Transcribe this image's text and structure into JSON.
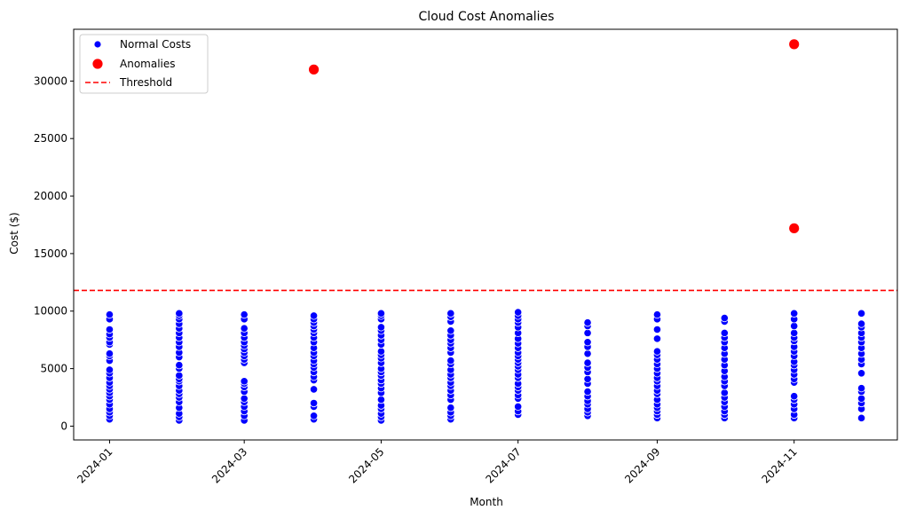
{
  "chart_data": {
    "type": "scatter",
    "title": "Cloud Cost Anomalies",
    "xlabel": "Month",
    "ylabel": "Cost ($)",
    "x_ticks": [
      "2024-01",
      "2024-03",
      "2024-05",
      "2024-07",
      "2024-09",
      "2024-11"
    ],
    "y_ticks": [
      0,
      5000,
      10000,
      15000,
      20000,
      25000,
      30000
    ],
    "xlim": [
      "2023-12-16",
      "2024-12-17"
    ],
    "ylim": [
      -1200,
      34500
    ],
    "grid": false,
    "legend_placement": "top-left",
    "threshold": {
      "name": "Threshold",
      "value": 11800,
      "color": "#ff0000",
      "style": "dashed"
    },
    "series": [
      {
        "name": "Normal Costs",
        "color": "#0000ff",
        "points": [
          {
            "x": "2024-01",
            "values": [
              600,
              900,
              1200,
              1500,
              1900,
              2300,
              2600,
              2900,
              3200,
              3500,
              3800,
              4200,
              4600,
              4900,
              5700,
              6100,
              6300,
              7100,
              7300,
              7700,
              8000,
              8400,
              9300,
              9700
            ]
          },
          {
            "x": "2024-02",
            "values": [
              500,
              800,
              1100,
              1600,
              2100,
              2500,
              2800,
              3100,
              3500,
              3900,
              4100,
              4400,
              5000,
              5300,
              6000,
              6400,
              6900,
              7300,
              7700,
              8100,
              8500,
              8900,
              9300,
              9600,
              9800
            ]
          },
          {
            "x": "2024-03",
            "values": [
              500,
              900,
              1300,
              1700,
              2100,
              2400,
              3000,
              3400,
              3700,
              3900,
              5500,
              5800,
              6100,
              6400,
              6700,
              7000,
              7300,
              7700,
              8100,
              8500,
              9300,
              9700
            ]
          },
          {
            "x": "2024-04",
            "values": [
              600,
              900,
              1700,
              2000,
              3200,
              4000,
              4300,
              4700,
              5100,
              5400,
              5700,
              6100,
              6400,
              6800,
              7300,
              7700,
              8100,
              8400,
              8700,
              9000,
              9300,
              9600
            ]
          },
          {
            "x": "2024-05",
            "values": [
              500,
              800,
              1100,
              1500,
              1800,
              2300,
              2900,
              3300,
              3700,
              4000,
              4400,
              4700,
              5000,
              5500,
              5900,
              6200,
              6500,
              7100,
              7500,
              7900,
              8300,
              8600,
              9300,
              9600,
              9800
            ]
          },
          {
            "x": "2024-06",
            "values": [
              600,
              900,
              1200,
              1600,
              2300,
              2700,
              3100,
              3500,
              3800,
              4200,
              4500,
              4900,
              5400,
              5700,
              6400,
              6800,
              7200,
              7500,
              7900,
              8300,
              9100,
              9500,
              9800
            ]
          },
          {
            "x": "2024-07",
            "values": [
              1000,
              1300,
              1700,
              2400,
              2700,
              3100,
              3400,
              3700,
              4200,
              4500,
              4900,
              5200,
              5500,
              5800,
              6100,
              6400,
              6800,
              7200,
              7600,
              8100,
              8600,
              9000,
              9300,
              9600,
              9900
            ]
          },
          {
            "x": "2024-08",
            "values": [
              900,
              1200,
              1500,
              1900,
              2200,
              2600,
              3000,
              3700,
              4100,
              4700,
              5100,
              5500,
              6300,
              6900,
              7300,
              8100,
              8700,
              9000
            ]
          },
          {
            "x": "2024-09",
            "values": [
              700,
              1000,
              1300,
              1600,
              1900,
              2300,
              2800,
              3100,
              3500,
              3900,
              4200,
              4600,
              5000,
              5400,
              5800,
              6200,
              6500,
              7600,
              8400,
              9300,
              9700
            ]
          },
          {
            "x": "2024-10",
            "values": [
              700,
              1000,
              1300,
              1700,
              2100,
              2500,
              2900,
              3500,
              3900,
              4300,
              4800,
              5300,
              5800,
              6300,
              6800,
              7300,
              7700,
              8100,
              9100,
              9400
            ]
          },
          {
            "x": "2024-11",
            "values": [
              700,
              1000,
              1500,
              1900,
              2300,
              2600,
              3800,
              4100,
              4500,
              4900,
              5300,
              5600,
              6100,
              6500,
              6900,
              7400,
              7700,
              8100,
              8700,
              9300,
              9800
            ]
          },
          {
            "x": "2024-12",
            "values": [
              700,
              1500,
              2000,
              2400,
              3000,
              3300,
              4600,
              5400,
              5800,
              6300,
              6800,
              7300,
              7700,
              8100,
              8600,
              8900,
              9800
            ]
          }
        ]
      },
      {
        "name": "Anomalies",
        "color": "#ff0000",
        "points": [
          {
            "x": "2024-04",
            "values": [
              31000
            ]
          },
          {
            "x": "2024-11",
            "values": [
              17200,
              33200
            ]
          }
        ]
      }
    ]
  }
}
